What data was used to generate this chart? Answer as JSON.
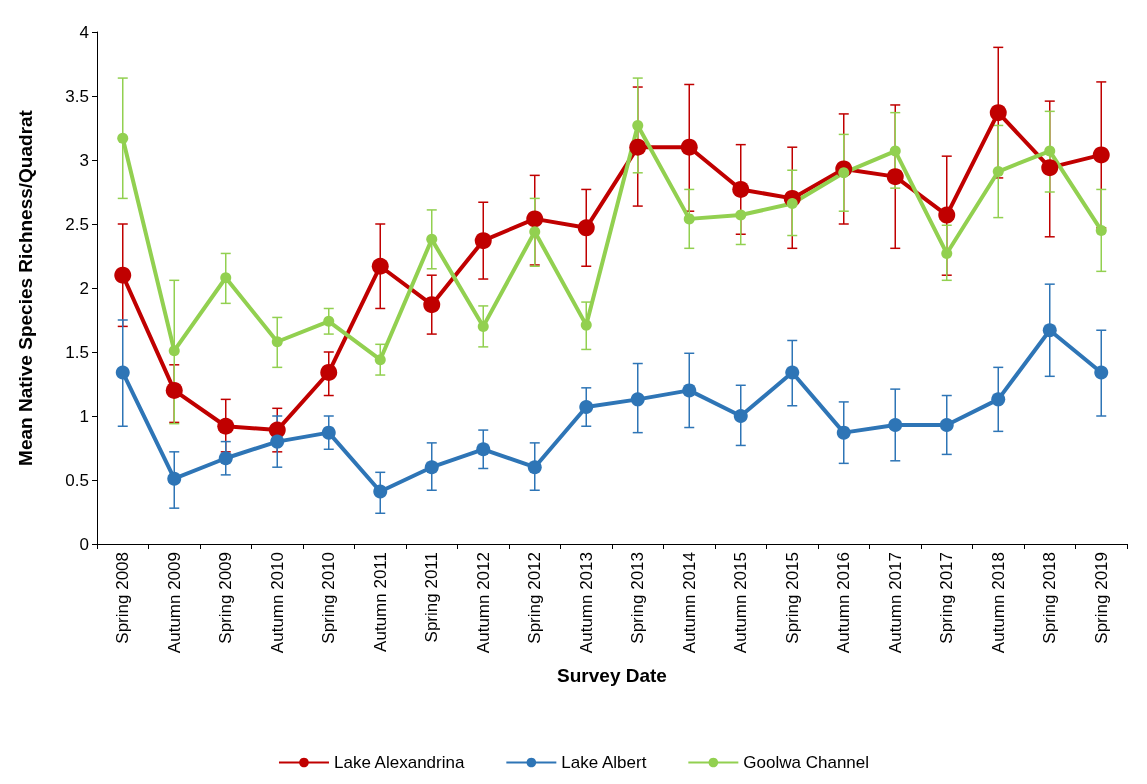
{
  "chart_data": {
    "type": "line",
    "xlabel": "Survey Date",
    "ylabel": "Mean Native Species Richness/Quadrat",
    "categories": [
      "Spring 2008",
      "Autumn 2009",
      "Spring 2009",
      "Autumn 2010",
      "Spring 2010",
      "Autumn 2011",
      "Spring 2011",
      "Autumn 2012",
      "Spring 2012",
      "Autumn 2013",
      "Spring 2013",
      "Autumn 2014",
      "Autumn 2015",
      "Spring 2015",
      "Autumn 2016",
      "Autumn 2017",
      "Spring 2017",
      "Autumn 2018",
      "Spring 2018",
      "Spring 2019"
    ],
    "ylim": [
      0,
      4
    ],
    "yticks": [
      0,
      0.5,
      1,
      1.5,
      2,
      2.5,
      3,
      3.5,
      4
    ],
    "grid": false,
    "legend": "bottom",
    "marker": "circle",
    "line_style": "solid",
    "series": [
      {
        "name": "Lake Alexandrina",
        "color": "#c00000",
        "values": [
          2.1,
          1.2,
          0.92,
          0.89,
          1.34,
          2.17,
          1.87,
          2.37,
          2.54,
          2.47,
          3.1,
          3.1,
          2.77,
          2.7,
          2.93,
          2.87,
          2.57,
          3.37,
          2.94,
          3.04
        ],
        "errors": [
          [
            1.7,
            2.5
          ],
          [
            0.95,
            1.4
          ],
          [
            0.72,
            1.13
          ],
          [
            0.72,
            1.06
          ],
          [
            1.16,
            1.5
          ],
          [
            1.84,
            2.5
          ],
          [
            1.64,
            2.1
          ],
          [
            2.07,
            2.67
          ],
          [
            2.18,
            2.88
          ],
          [
            2.17,
            2.77
          ],
          [
            2.64,
            3.57
          ],
          [
            2.6,
            3.59
          ],
          [
            2.42,
            3.12
          ],
          [
            2.31,
            3.1
          ],
          [
            2.5,
            3.36
          ],
          [
            2.31,
            3.43
          ],
          [
            2.1,
            3.03
          ],
          [
            2.86,
            3.88
          ],
          [
            2.4,
            3.46
          ],
          [
            2.47,
            3.61
          ]
        ]
      },
      {
        "name": "Lake Albert",
        "color": "#2e75b6",
        "values": [
          1.34,
          0.51,
          0.67,
          0.8,
          0.87,
          0.41,
          0.6,
          0.74,
          0.6,
          1.07,
          1.13,
          1.2,
          1.0,
          1.34,
          0.87,
          0.93,
          0.93,
          1.13,
          1.67,
          1.34
        ],
        "errors": [
          [
            0.92,
            1.75
          ],
          [
            0.28,
            0.72
          ],
          [
            0.54,
            0.8
          ],
          [
            0.6,
            1.0
          ],
          [
            0.74,
            1.0
          ],
          [
            0.24,
            0.56
          ],
          [
            0.42,
            0.79
          ],
          [
            0.59,
            0.89
          ],
          [
            0.42,
            0.79
          ],
          [
            0.92,
            1.22
          ],
          [
            0.87,
            1.41
          ],
          [
            0.91,
            1.49
          ],
          [
            0.77,
            1.24
          ],
          [
            1.08,
            1.59
          ],
          [
            0.63,
            1.11
          ],
          [
            0.65,
            1.21
          ],
          [
            0.7,
            1.16
          ],
          [
            0.88,
            1.38
          ],
          [
            1.31,
            2.03
          ],
          [
            1.0,
            1.67
          ]
        ]
      },
      {
        "name": "Goolwa Channel",
        "color": "#92d050",
        "values": [
          3.17,
          1.51,
          2.08,
          1.58,
          1.74,
          1.44,
          2.38,
          1.7,
          2.44,
          1.71,
          3.27,
          2.54,
          2.57,
          2.66,
          2.9,
          3.07,
          2.27,
          2.91,
          3.07,
          2.45
        ],
        "errors": [
          [
            2.7,
            3.64
          ],
          [
            0.94,
            2.06
          ],
          [
            1.88,
            2.27
          ],
          [
            1.38,
            1.77
          ],
          [
            1.64,
            1.84
          ],
          [
            1.32,
            1.56
          ],
          [
            2.15,
            2.61
          ],
          [
            1.54,
            1.86
          ],
          [
            2.17,
            2.7
          ],
          [
            1.52,
            1.89
          ],
          [
            2.9,
            3.64
          ],
          [
            2.31,
            2.77
          ],
          [
            2.34,
            2.57
          ],
          [
            2.41,
            2.92
          ],
          [
            2.6,
            3.2
          ],
          [
            2.78,
            3.37
          ],
          [
            2.06,
            2.49
          ],
          [
            2.55,
            3.27
          ],
          [
            2.75,
            3.38
          ],
          [
            2.13,
            2.77
          ]
        ]
      }
    ]
  }
}
